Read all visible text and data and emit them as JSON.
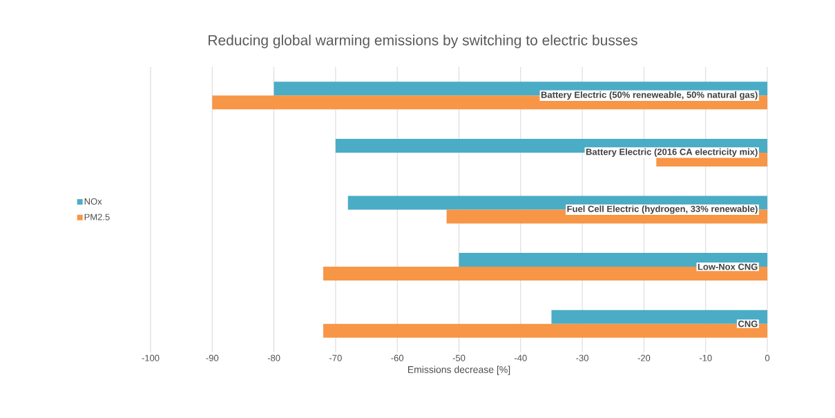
{
  "chart_data": {
    "type": "bar",
    "orientation": "horizontal",
    "title": "Reducing global warming emissions by switching to electric busses",
    "xlabel": "Emissions decrease [%]",
    "categories": [
      "Battery Electric (50% reneweable, 50% natural gas)",
      "Battery Electric (2016 CA electricity mix)",
      "Fuel Cell Electric (hydrogen, 33% renewable)",
      "Low-Nox CNG",
      "CNG"
    ],
    "series": [
      {
        "name": "NOx",
        "color": "#4bacc6",
        "values": [
          -80,
          -70,
          -68,
          -50,
          -35
        ]
      },
      {
        "name": "PM2.5",
        "color": "#f79646",
        "values": [
          -90,
          -18,
          -52,
          -72,
          -72
        ]
      }
    ],
    "xlim": [
      -100,
      0
    ],
    "xticks": [
      -100,
      -90,
      -80,
      -70,
      -60,
      -50,
      -40,
      -30,
      -20,
      -10,
      0
    ],
    "grid": "x",
    "legend": "left"
  }
}
